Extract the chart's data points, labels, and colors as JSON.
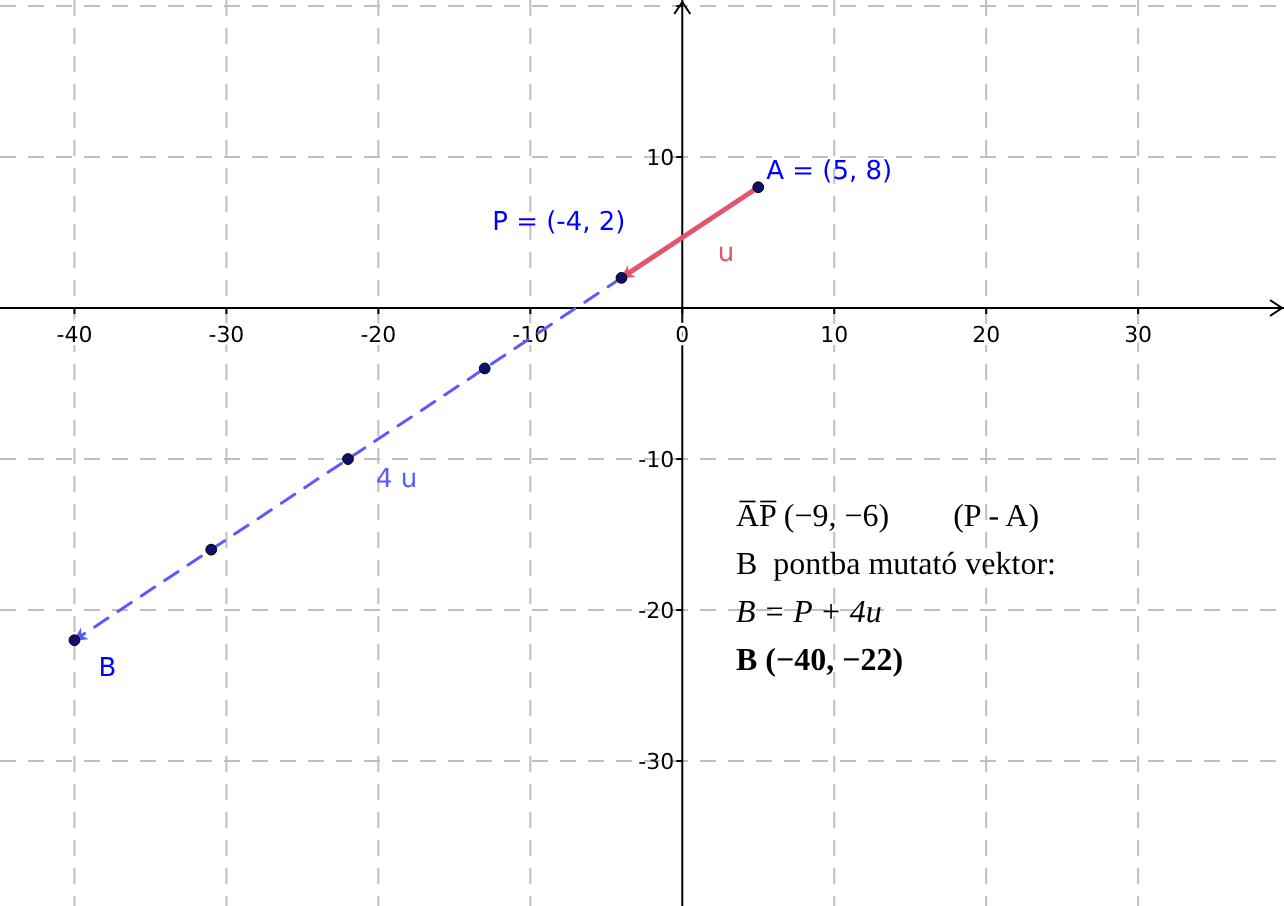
{
  "chart_data": {
    "type": "scatter",
    "xlim": [
      -44.9,
      39.6
    ],
    "ylim": [
      -39.6,
      20.4
    ],
    "xticks": [
      -40,
      -30,
      -20,
      -10,
      0,
      10,
      20,
      30
    ],
    "yticks": [
      -30,
      -20,
      -10,
      10,
      {
        "value": 20,
        "label": null
      }
    ],
    "grid": true,
    "marker": "circle",
    "series": [
      {
        "name": "u",
        "type": "line",
        "color": "#e0566e",
        "x": [
          5,
          -4
        ],
        "values": [
          8,
          2
        ],
        "line_style": "solid",
        "marker": "none"
      },
      {
        "name": "4 u",
        "type": "line",
        "color": "#5a5aff",
        "x": [
          -4,
          -40
        ],
        "values": [
          2,
          -22
        ],
        "line_style": "dashed",
        "marker": "none"
      },
      {
        "color": "#10106a",
        "x": [
          5,
          -4,
          -13,
          -22,
          -31,
          -40
        ],
        "values": [
          8,
          2,
          -4,
          -10,
          -16,
          -22
        ]
      }
    ],
    "annotations": [
      {
        "text": "A = (5, 8)",
        "x": 5,
        "y": 8
      },
      {
        "text": "P = (-4, 2)",
        "x": -4,
        "y": 2
      },
      {
        "text": "B",
        "x": -40,
        "y": -22
      },
      "A̅P̅ (−9, −6)        (P - A)",
      "B  pontba mutató vektor:",
      "B = P + 4u⃗",
      "B (−40, −22)"
    ]
  }
}
